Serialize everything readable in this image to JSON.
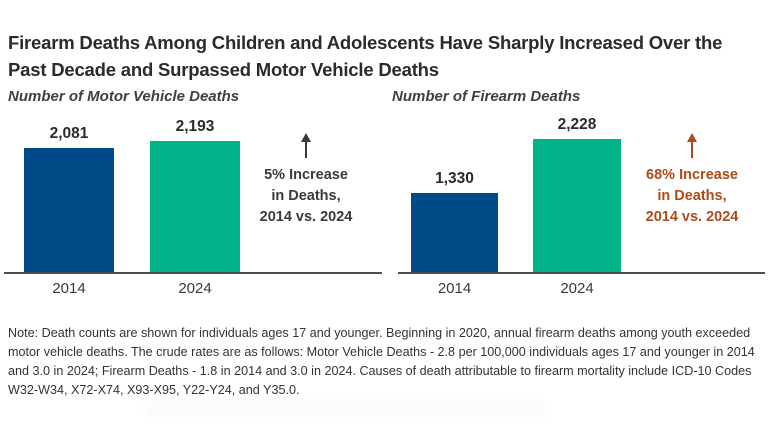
{
  "page": {
    "title_lines": [
      "Firearm Deaths Among Children and Adolescents Have Sharply Increased Over the",
      "Past Decade and Surpassed Motor Vehicle Deaths"
    ],
    "note": "Note: Death counts are shown for individuals ages 17 and younger. Beginning in 2020, annual firearm deaths among youth exceeded motor vehicle deaths. The crude rates are as follows: Motor Vehicle Deaths - 2.8 per 100,000 individuals ages 17 and younger in 2014 and 3.0 in 2024; Firearm Deaths - 1.8 in 2014 and 3.0 in 2024. Causes of death attributable to firearm mortality include ICD-10 Codes W32-W34, X72-X74, X93-X95, Y22-Y24, and Y35.0."
  },
  "colors": {
    "bar_blue": "#004B87",
    "bar_green": "#00B389",
    "annotation_dark": "#3A3A3A",
    "annotation_orange": "#B04A17",
    "text_dark": "#2B2B2B",
    "axis_line": "#4D4D4D"
  },
  "chart_data": [
    {
      "type": "bar",
      "title": "Number of Motor Vehicle Deaths",
      "categories": [
        "2014",
        "2024"
      ],
      "values": [
        2081,
        2193
      ],
      "value_labels": [
        "2,081",
        "2,193"
      ],
      "bar_colors": [
        "#004B87",
        "#00B389"
      ],
      "ylim": [
        0,
        2400
      ],
      "grid": false,
      "legend": "none",
      "annotation_lines": [
        "5% Increase",
        "in Deaths,",
        "2014 vs. 2024"
      ],
      "annotation_color": "#3A3A3A"
    },
    {
      "type": "bar",
      "title": "Number of Firearm Deaths",
      "categories": [
        "2014",
        "2024"
      ],
      "values": [
        1330,
        2228
      ],
      "value_labels": [
        "1,330",
        "2,228"
      ],
      "bar_colors": [
        "#004B87",
        "#00B389"
      ],
      "ylim": [
        0,
        2400
      ],
      "grid": false,
      "legend": "none",
      "annotation_lines": [
        "68% Increase",
        "in Deaths,",
        "2014 vs. 2024"
      ],
      "annotation_color": "#B04A17"
    }
  ]
}
